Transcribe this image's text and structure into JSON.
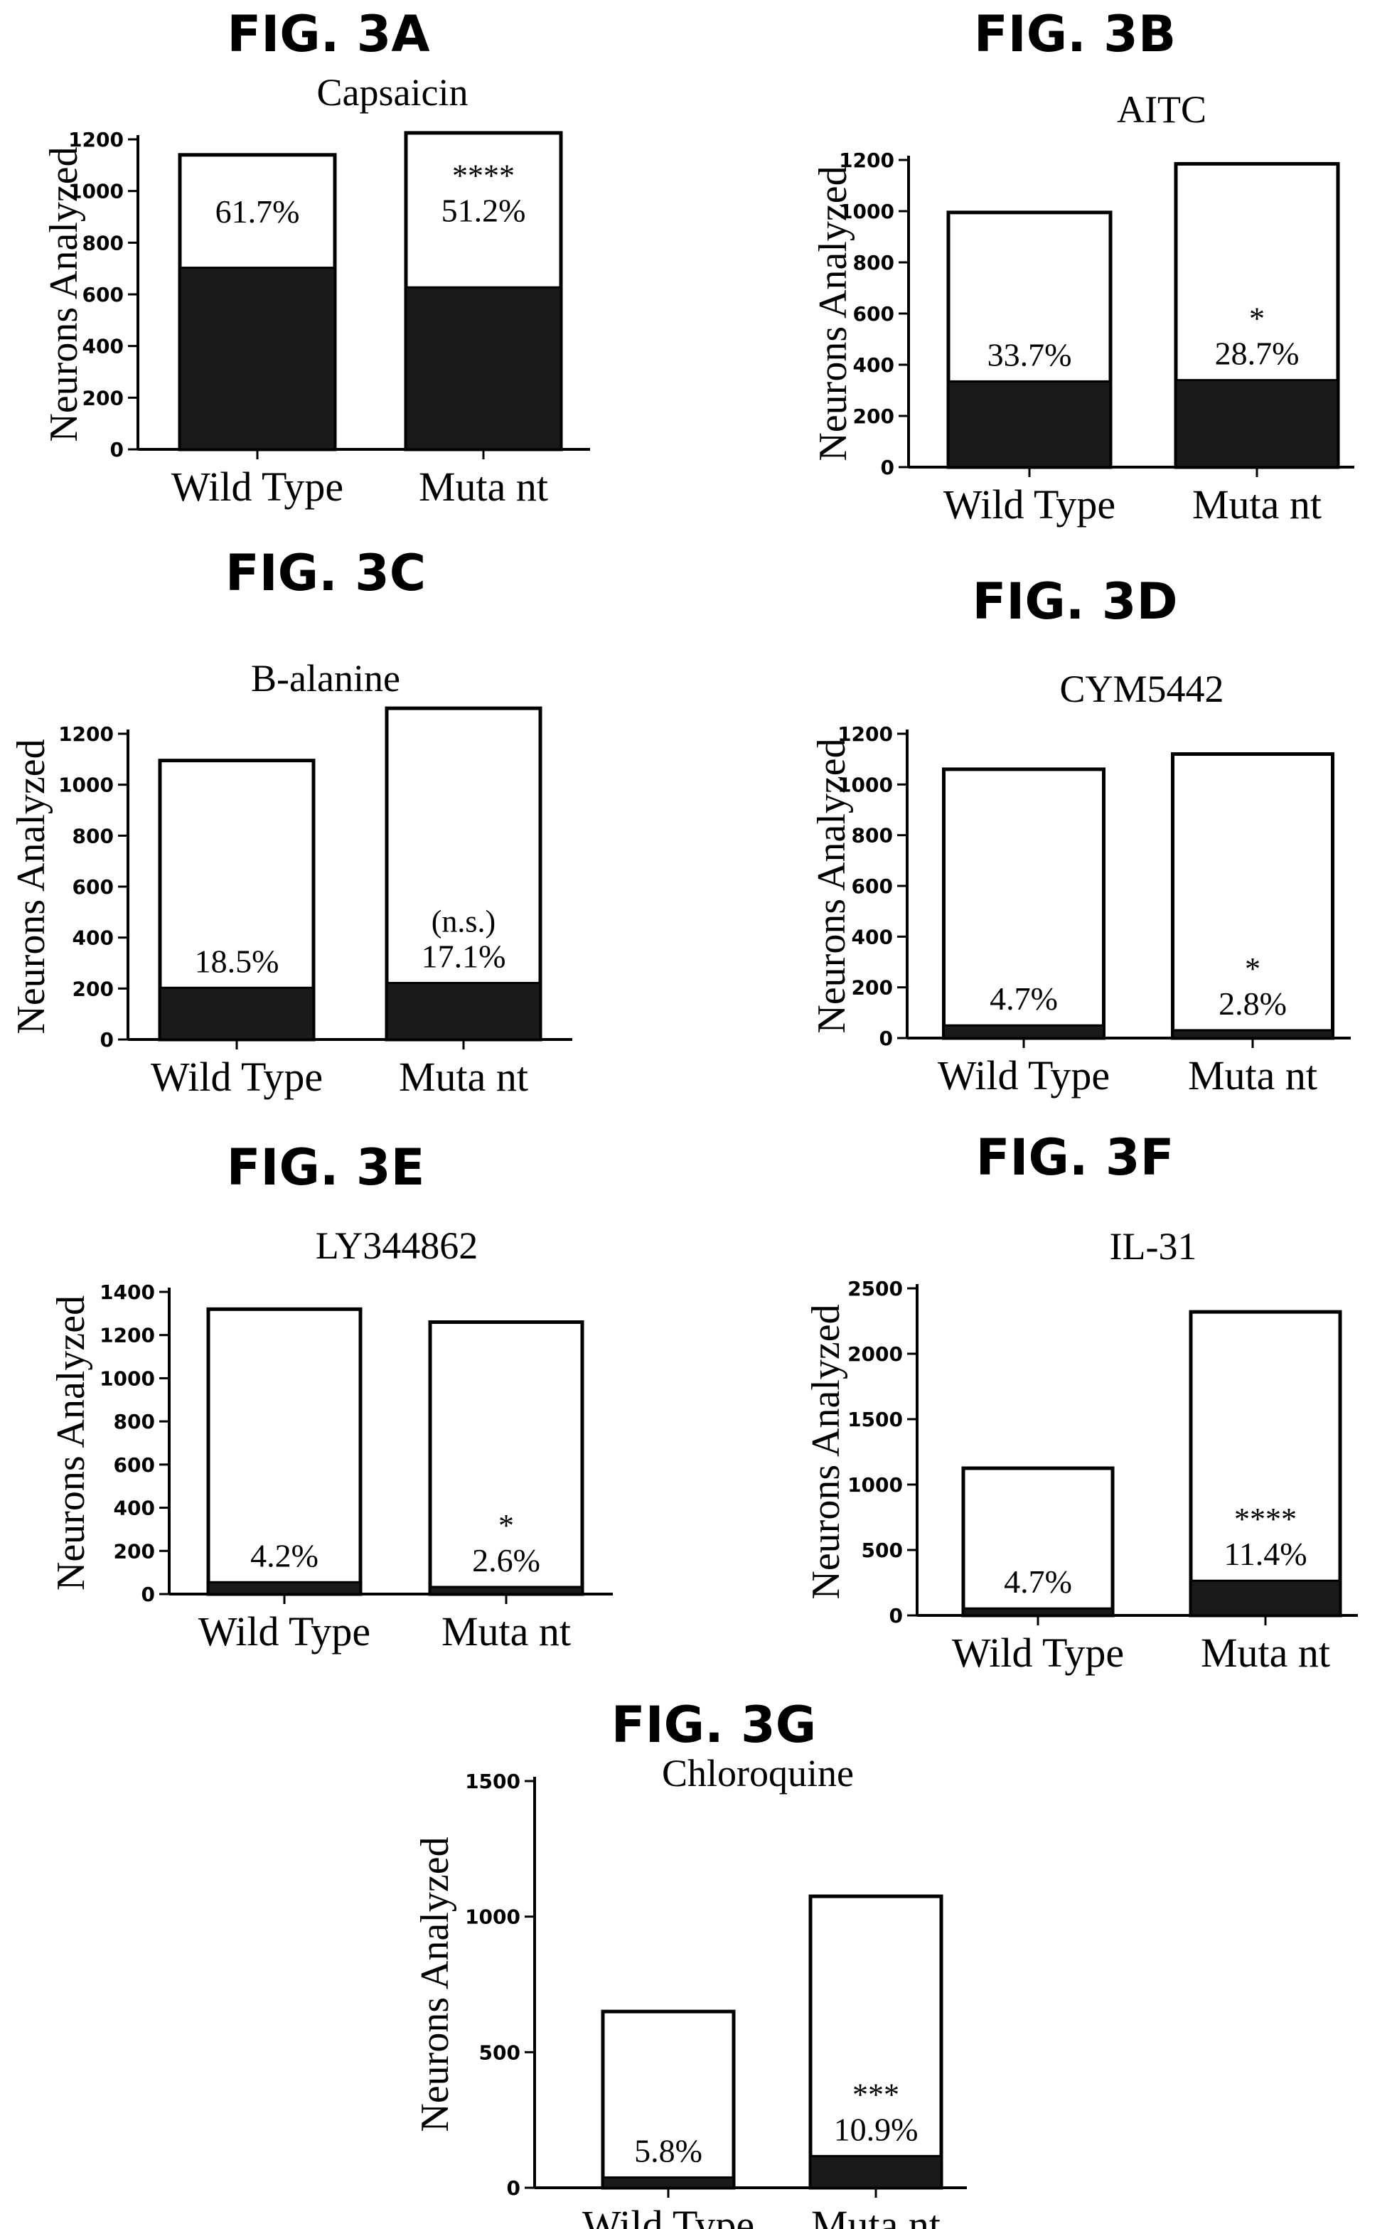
{
  "colors": {
    "responder_fill": "#1a1a1a",
    "bar_fill": "#ffffff",
    "ink": "#000000"
  },
  "chart_data": [
    {
      "type": "bar",
      "figure_label": "FIG. 3A",
      "title": "Capsaicin",
      "ylabel": "Neurons Analyzed",
      "ylim": [
        0,
        1200
      ],
      "yticks": [
        0,
        200,
        400,
        600,
        800,
        1000,
        1200
      ],
      "categories": [
        "Wild Type",
        "Muta nt"
      ],
      "series": [
        {
          "name": "",
          "values": [
            1140,
            1225
          ]
        },
        {
          "name": "",
          "values": [
            703,
            627
          ]
        }
      ],
      "bar_labels": [
        "61.7%",
        "51.2%"
      ],
      "significance": [
        "",
        "****"
      ]
    },
    {
      "type": "bar",
      "figure_label": "FIG. 3B",
      "title": "AITC",
      "ylabel": "Neurons Analyzed",
      "ylim": [
        0,
        1200
      ],
      "yticks": [
        0,
        200,
        400,
        600,
        800,
        1000,
        1200
      ],
      "categories": [
        "Wild Type",
        "Muta nt"
      ],
      "series": [
        {
          "name": "",
          "values": [
            995,
            1185
          ]
        },
        {
          "name": "",
          "values": [
            335,
            340
          ]
        }
      ],
      "bar_labels": [
        "33.7%",
        "28.7%"
      ],
      "significance": [
        "",
        "*"
      ]
    },
    {
      "type": "bar",
      "figure_label": "FIG. 3C",
      "title": "B-alanine",
      "ylabel": "Neurons Analyzed",
      "ylim": [
        0,
        1200
      ],
      "yticks": [
        0,
        200,
        400,
        600,
        800,
        1000,
        1200
      ],
      "categories": [
        "Wild Type",
        "Muta nt"
      ],
      "series": [
        {
          "name": "",
          "values": [
            1095,
            1300
          ]
        },
        {
          "name": "",
          "values": [
            203,
            222
          ]
        }
      ],
      "bar_labels": [
        "18.5%",
        "17.1%"
      ],
      "significance": [
        "",
        "(n.s.)"
      ]
    },
    {
      "type": "bar",
      "figure_label": "FIG. 3D",
      "title": "CYM5442",
      "ylabel": "Neurons Analyzed",
      "ylim": [
        0,
        1200
      ],
      "yticks": [
        0,
        200,
        400,
        600,
        800,
        1000,
        1200
      ],
      "categories": [
        "Wild Type",
        "Muta nt"
      ],
      "series": [
        {
          "name": "",
          "values": [
            1060,
            1120
          ]
        },
        {
          "name": "",
          "values": [
            50,
            31
          ]
        }
      ],
      "bar_labels": [
        "4.7%",
        "2.8%"
      ],
      "significance": [
        "",
        "*"
      ]
    },
    {
      "type": "bar",
      "figure_label": "FIG. 3E",
      "title": "LY344862",
      "ylabel": "Neurons Analyzed",
      "ylim": [
        0,
        1400
      ],
      "yticks": [
        0,
        200,
        400,
        600,
        800,
        1000,
        1200,
        1400
      ],
      "categories": [
        "Wild Type",
        "Muta nt"
      ],
      "series": [
        {
          "name": "",
          "values": [
            1320,
            1260
          ]
        },
        {
          "name": "",
          "values": [
            55,
            33
          ]
        }
      ],
      "bar_labels": [
        "4.2%",
        "2.6%"
      ],
      "significance": [
        "",
        "*"
      ]
    },
    {
      "type": "bar",
      "figure_label": "FIG. 3F",
      "title": "IL-31",
      "ylabel": "Neurons Analyzed",
      "ylim": [
        0,
        2500
      ],
      "yticks": [
        0,
        500,
        1000,
        1500,
        2000,
        2500
      ],
      "categories": [
        "Wild Type",
        "Muta nt"
      ],
      "series": [
        {
          "name": "",
          "values": [
            1125,
            2320
          ]
        },
        {
          "name": "",
          "values": [
            53,
            265
          ]
        }
      ],
      "bar_labels": [
        "4.7%",
        "11.4%"
      ],
      "significance": [
        "",
        "****"
      ]
    },
    {
      "type": "bar",
      "figure_label": "FIG. 3G",
      "title": "Chloroquine",
      "ylabel": "Neurons Analyzed",
      "ylim": [
        0,
        1500
      ],
      "yticks": [
        0,
        500,
        1000,
        1500
      ],
      "categories": [
        "Wild Type",
        "Muta nt"
      ],
      "series": [
        {
          "name": "",
          "values": [
            650,
            1075
          ]
        },
        {
          "name": "",
          "values": [
            38,
            117
          ]
        }
      ],
      "bar_labels": [
        "5.8%",
        "10.9%"
      ],
      "significance": [
        "",
        "***"
      ]
    }
  ]
}
